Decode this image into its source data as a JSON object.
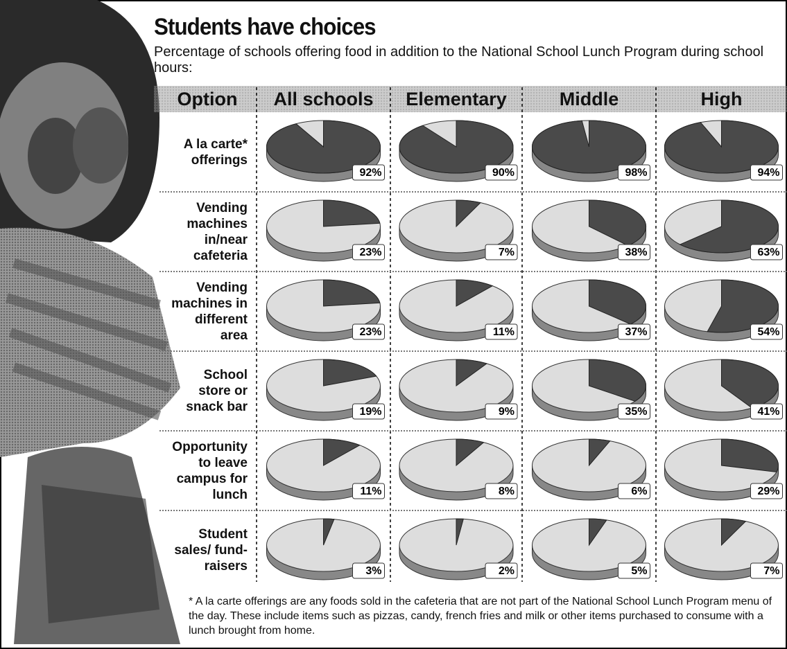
{
  "chart_data": {
    "type": "pie_grid",
    "title": "Students have choices",
    "subtitle": "Percentage of schools offering food in addition to the National School Lunch Program during school hours:",
    "header": "Option",
    "columns": [
      "All schools",
      "Elementary",
      "Middle",
      "High"
    ],
    "rows": [
      {
        "label": "A la carte* offerings",
        "values": [
          92,
          90,
          98,
          94
        ],
        "value_labels": [
          "92%",
          "90%",
          "98%",
          "94%"
        ]
      },
      {
        "label": "Vending machines in/near cafeteria",
        "values": [
          23,
          7,
          38,
          63
        ],
        "value_labels": [
          "23%",
          "7%",
          "38%",
          "63%"
        ]
      },
      {
        "label": "Vending machines in different area",
        "values": [
          23,
          11,
          37,
          54
        ],
        "value_labels": [
          "23%",
          "11%",
          "37%",
          "54%"
        ]
      },
      {
        "label": "School store or snack bar",
        "values": [
          19,
          9,
          35,
          41
        ],
        "value_labels": [
          "19%",
          "9%",
          "35%",
          "41%"
        ]
      },
      {
        "label": "Opportunity to leave campus for lunch",
        "values": [
          11,
          8,
          6,
          29
        ],
        "value_labels": [
          "11%",
          "8%",
          "6%",
          "29%"
        ]
      },
      {
        "label": "Student sales/ fund-raisers",
        "values": [
          3,
          2,
          5,
          7
        ],
        "value_labels": [
          "3%",
          "2%",
          "5%",
          "7%"
        ]
      }
    ],
    "footnote": "* A la carte offerings are any foods sold in the cafeteria that are not part of the National School Lunch Program menu of the day. These include items such as pizzas, candy, french fries and milk or other items purchased to consume with a lunch brought from home."
  }
}
